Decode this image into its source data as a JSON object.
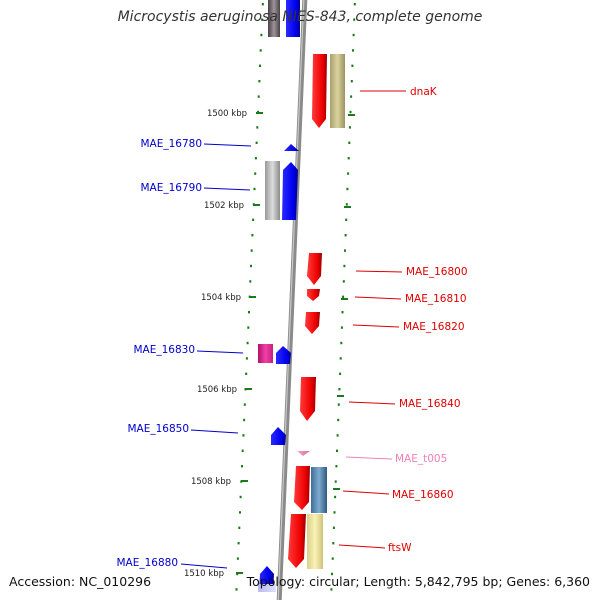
{
  "title": "Microcystis aeruginosa NIES-843, complete genome",
  "accession": "Accession: NC_010296",
  "summary": "Topology: circular; Length: 5,842,795 bp; Genes: 6,360",
  "colors": {
    "forward_strand": "#ff0000",
    "reverse_strand": "#0000ff",
    "trna": "#f080b8",
    "tick": "#1a7a1a",
    "backbone": "#888888",
    "background": "#ffffff"
  },
  "ticks": [
    {
      "kbp": 1500,
      "label": "1500 kbp"
    },
    {
      "kbp": 1502,
      "label": "1502 kbp"
    },
    {
      "kbp": 1504,
      "label": "1504 kbp"
    },
    {
      "kbp": 1506,
      "label": "1506 kbp"
    },
    {
      "kbp": 1508,
      "label": "1508 kbp"
    },
    {
      "kbp": 1510,
      "label": "1510 kbp"
    }
  ],
  "features": [
    {
      "name": "dnaK",
      "strand": "forward",
      "type": "gene",
      "color": "#ff0000"
    },
    {
      "name": "MAE_16780",
      "strand": "reverse",
      "type": "gene",
      "color": "#0000ff"
    },
    {
      "name": "MAE_16790",
      "strand": "reverse",
      "type": "gene",
      "color": "#0000ff"
    },
    {
      "name": "MAE_16800",
      "strand": "forward",
      "type": "gene",
      "color": "#ff0000"
    },
    {
      "name": "MAE_16810",
      "strand": "forward",
      "type": "gene",
      "color": "#ff0000"
    },
    {
      "name": "MAE_16820",
      "strand": "forward",
      "type": "gene",
      "color": "#ff0000"
    },
    {
      "name": "MAE_16830",
      "strand": "reverse",
      "type": "gene",
      "color": "#0000ff"
    },
    {
      "name": "MAE_16840",
      "strand": "forward",
      "type": "gene",
      "color": "#ff0000"
    },
    {
      "name": "MAE_16850",
      "strand": "reverse",
      "type": "gene",
      "color": "#0000ff"
    },
    {
      "name": "MAE_t005",
      "strand": "forward",
      "type": "tRNA",
      "color": "#f080b8"
    },
    {
      "name": "MAE_16860",
      "strand": "forward",
      "type": "gene",
      "color": "#ff0000"
    },
    {
      "name": "ftsW",
      "strand": "forward",
      "type": "gene",
      "color": "#ff0000"
    },
    {
      "name": "MAE_16880",
      "strand": "reverse",
      "type": "gene",
      "color": "#0000ff"
    }
  ]
}
